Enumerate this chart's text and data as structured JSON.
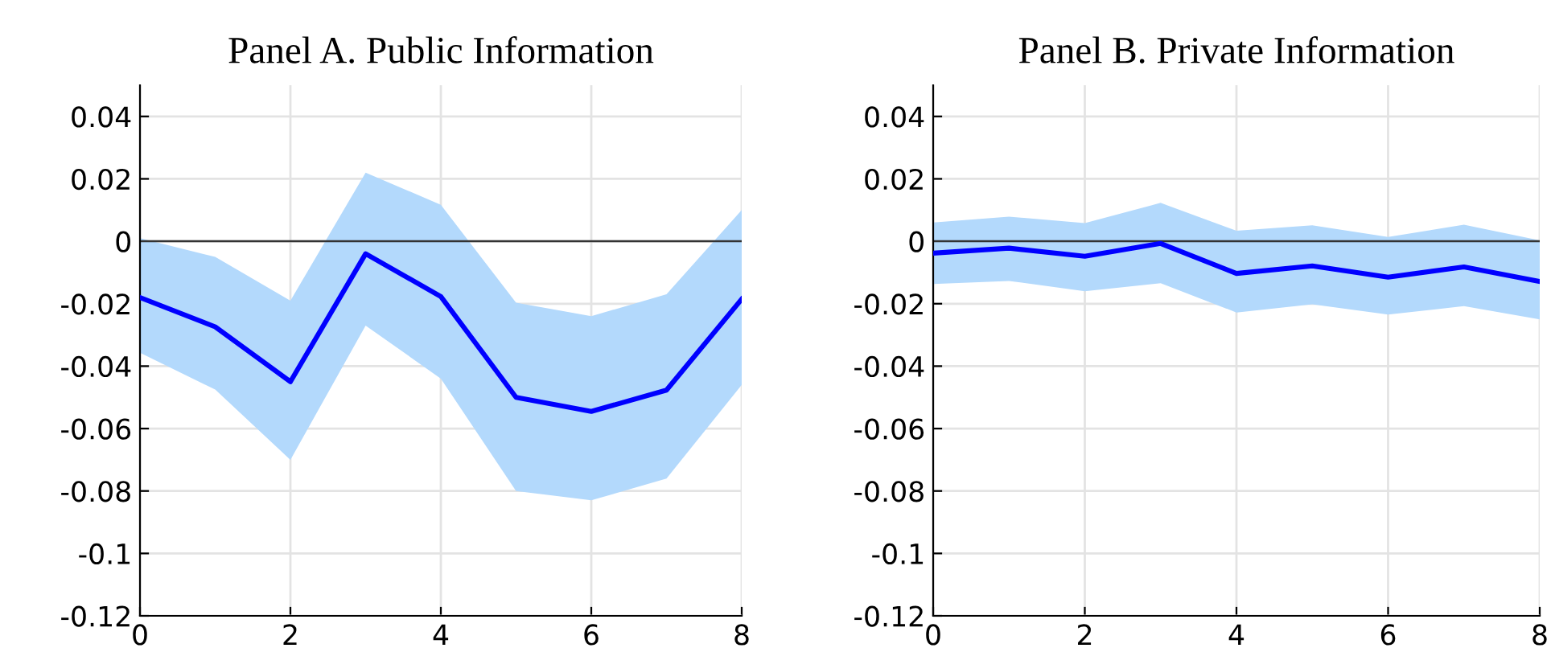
{
  "chart_data": [
    {
      "type": "line",
      "title": "Panel A. Public Information",
      "x": [
        0,
        1,
        2,
        3,
        4,
        5,
        6,
        7,
        8
      ],
      "xlim": [
        0,
        8
      ],
      "xticks": [
        0,
        2,
        4,
        6,
        8
      ],
      "ylim": [
        -0.12,
        0.05
      ],
      "yticks": [
        -0.12,
        -0.1,
        -0.08,
        -0.06,
        -0.04,
        -0.02,
        0,
        0.02,
        0.04
      ],
      "grid": true,
      "ref_lines": [
        {
          "axis": "y",
          "value": 0,
          "color": "#333333"
        }
      ],
      "series": [
        {
          "color": "#0000ff",
          "values": [
            -0.018,
            -0.0274,
            -0.045,
            -0.004,
            -0.0177,
            -0.05,
            -0.0545,
            -0.0477,
            -0.0185
          ],
          "lower": [
            -0.0357,
            -0.0475,
            -0.07,
            -0.027,
            -0.044,
            -0.08,
            -0.083,
            -0.076,
            -0.046
          ],
          "upper": [
            0.001,
            -0.005,
            -0.019,
            0.022,
            0.0117,
            -0.0197,
            -0.024,
            -0.017,
            0.01
          ]
        }
      ]
    },
    {
      "type": "line",
      "title": "Panel B. Private Information",
      "x": [
        0,
        1,
        2,
        3,
        4,
        5,
        6,
        7,
        8
      ],
      "xlim": [
        0,
        8
      ],
      "xticks": [
        0,
        2,
        4,
        6,
        8
      ],
      "ylim": [
        -0.12,
        0.05
      ],
      "yticks": [
        -0.12,
        -0.1,
        -0.08,
        -0.06,
        -0.04,
        -0.02,
        0,
        0.02,
        0.04
      ],
      "grid": true,
      "ref_lines": [
        {
          "axis": "y",
          "value": 0,
          "color": "#333333"
        }
      ],
      "series": [
        {
          "color": "#0000ff",
          "values": [
            -0.0038,
            -0.0022,
            -0.0048,
            -0.0007,
            -0.0103,
            -0.0079,
            -0.0115,
            -0.0082,
            -0.0129
          ],
          "lower": [
            -0.0137,
            -0.0127,
            -0.016,
            -0.0134,
            -0.0228,
            -0.0202,
            -0.0235,
            -0.0208,
            -0.025
          ],
          "upper": [
            0.006,
            0.0079,
            0.0058,
            0.0123,
            0.0034,
            0.0051,
            0.0014,
            0.0053,
            0.0003
          ]
        }
      ]
    }
  ]
}
